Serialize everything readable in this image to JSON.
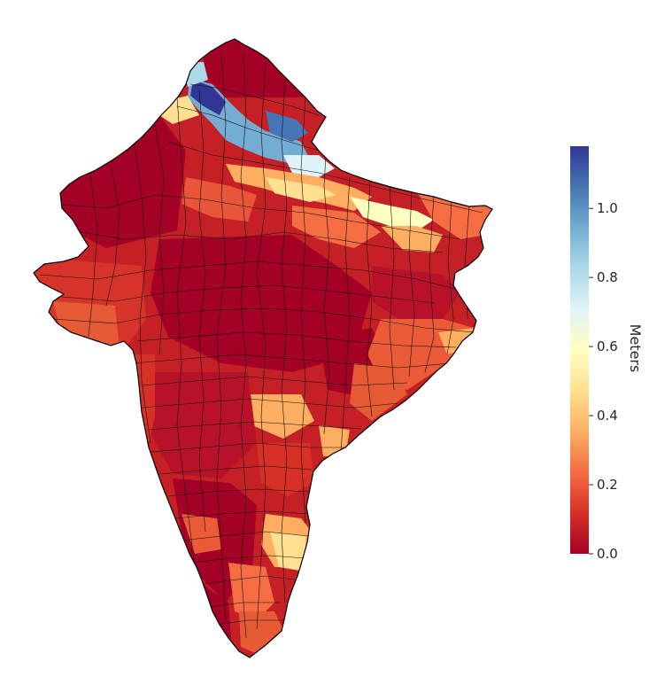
{
  "chart_data": {
    "type": "choropleth",
    "title": "",
    "colormap": "RdYlBu",
    "colorbar": {
      "label": "Meters",
      "vmin": 0.0,
      "vmax": 1.18,
      "ticks": [
        0.0,
        0.2,
        0.4,
        0.6,
        0.8,
        1.0
      ],
      "tick_labels": [
        "0.0",
        "0.2",
        "0.4",
        "0.6",
        "0.8",
        "1.0"
      ],
      "placement": "right"
    },
    "region_value_summary": {
      "northern_himalayan_belt": [
        1.1,
        0.95,
        0.85,
        0.75
      ],
      "gangetic_plain": [
        0.45,
        0.55,
        0.62,
        0.35
      ],
      "central_india": [
        0.02,
        0.05,
        0.1
      ],
      "deccan_plateau": [
        0.35,
        0.15,
        0.05
      ],
      "southern_peninsula": [
        0.5,
        0.25,
        0.05
      ],
      "eastern_coast": [
        0.3,
        0.2,
        0.15
      ]
    }
  }
}
